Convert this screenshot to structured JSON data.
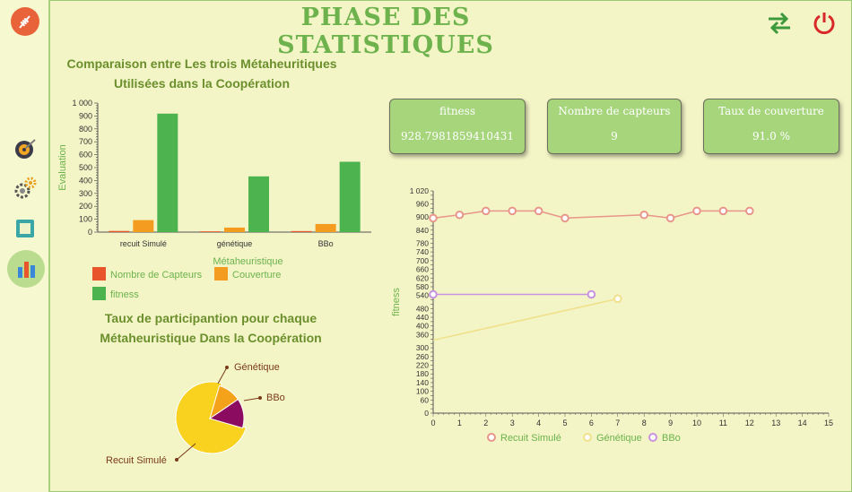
{
  "header": {
    "title": "PHASE DES STATISTIQUES"
  },
  "bar_section": {
    "title_line1": "Comparaison entre Les trois Métaheuritiques",
    "title_line2": "Utilisées dans la Coopération"
  },
  "pie_section": {
    "title_line1": "Taux de participantion pour chaque",
    "title_line2": "Métaheuristique Dans la Coopération"
  },
  "cards": [
    {
      "label": "fitness",
      "value": "928.7981859410431"
    },
    {
      "label": "Nombre de capteurs",
      "value": "9"
    },
    {
      "label": "Taux de couverture",
      "value": "91.0 %"
    }
  ],
  "chart_data": [
    {
      "type": "bar",
      "xlabel": "Métaheuristique",
      "ylabel": "Evaluation",
      "ylim": [
        0,
        1000
      ],
      "yticks": [
        "0",
        "100",
        "200",
        "300",
        "400",
        "500",
        "600",
        "700",
        "800",
        "900",
        "1 000"
      ],
      "categories": [
        "recuit Simulé",
        "génétique",
        "BBo"
      ],
      "series": [
        {
          "name": "Nombre de Capteurs",
          "color": "#e8552b",
          "values": [
            9,
            6,
            8
          ]
        },
        {
          "name": "Couverture",
          "color": "#f39c1f",
          "values": [
            93,
            35,
            63
          ]
        },
        {
          "name": "fitness",
          "color": "#4cb34f",
          "values": [
            918,
            432,
            545
          ]
        }
      ]
    },
    {
      "type": "pie",
      "slices": [
        {
          "label": "Recuit Simulé",
          "value": 75,
          "color": "#f8d21f"
        },
        {
          "label": "Génétique",
          "value": 11,
          "color": "#f4a21a"
        },
        {
          "label": "BBo",
          "value": 14,
          "color": "#8a0b5f"
        }
      ]
    },
    {
      "type": "line",
      "ylabel": "fitness",
      "xlim": [
        0,
        15
      ],
      "ylim": [
        0,
        1020
      ],
      "yticks": [
        "0",
        "20",
        "40",
        "60",
        "80",
        "100",
        "120",
        "140",
        "160",
        "180",
        "200",
        "220",
        "240",
        "260",
        "280",
        "300",
        "320",
        "340",
        "360",
        "380",
        "400",
        "420",
        "440",
        "460",
        "480",
        "500",
        "520",
        "540",
        "560",
        "580",
        "600",
        "620",
        "640",
        "660",
        "680",
        "700",
        "720",
        "740",
        "760",
        "780",
        "800",
        "820",
        "840",
        "860",
        "880",
        "900",
        "920",
        "940",
        "960",
        "980",
        "1 000",
        "1 020"
      ],
      "ylabels_shown": [
        "0",
        "60",
        "100",
        "140",
        "180",
        "220",
        "260",
        "300",
        "360",
        "400",
        "440",
        "480",
        "540",
        "580",
        "620",
        "660",
        "700",
        "740",
        "780",
        "840",
        "900",
        "960",
        "1 020"
      ],
      "xticks": [
        "0",
        "1",
        "2",
        "3",
        "4",
        "5",
        "6",
        "7",
        "8",
        "9",
        "10",
        "11",
        "12",
        "13",
        "14",
        "15"
      ],
      "series": [
        {
          "name": "Recuit Simulé",
          "color": "#e8958a",
          "x": [
            0,
            1,
            2,
            3,
            4,
            5,
            8,
            9,
            10,
            11,
            12
          ],
          "y": [
            895,
            910,
            928,
            928,
            928,
            895,
            910,
            895,
            928,
            928,
            928
          ]
        },
        {
          "name": "Génétique",
          "color": "#f0e08a",
          "x": [
            0,
            7
          ],
          "y": [
            335,
            525
          ]
        },
        {
          "name": "BBo",
          "color": "#c792e0",
          "x": [
            0,
            6
          ],
          "y": [
            545,
            545
          ]
        }
      ]
    }
  ]
}
